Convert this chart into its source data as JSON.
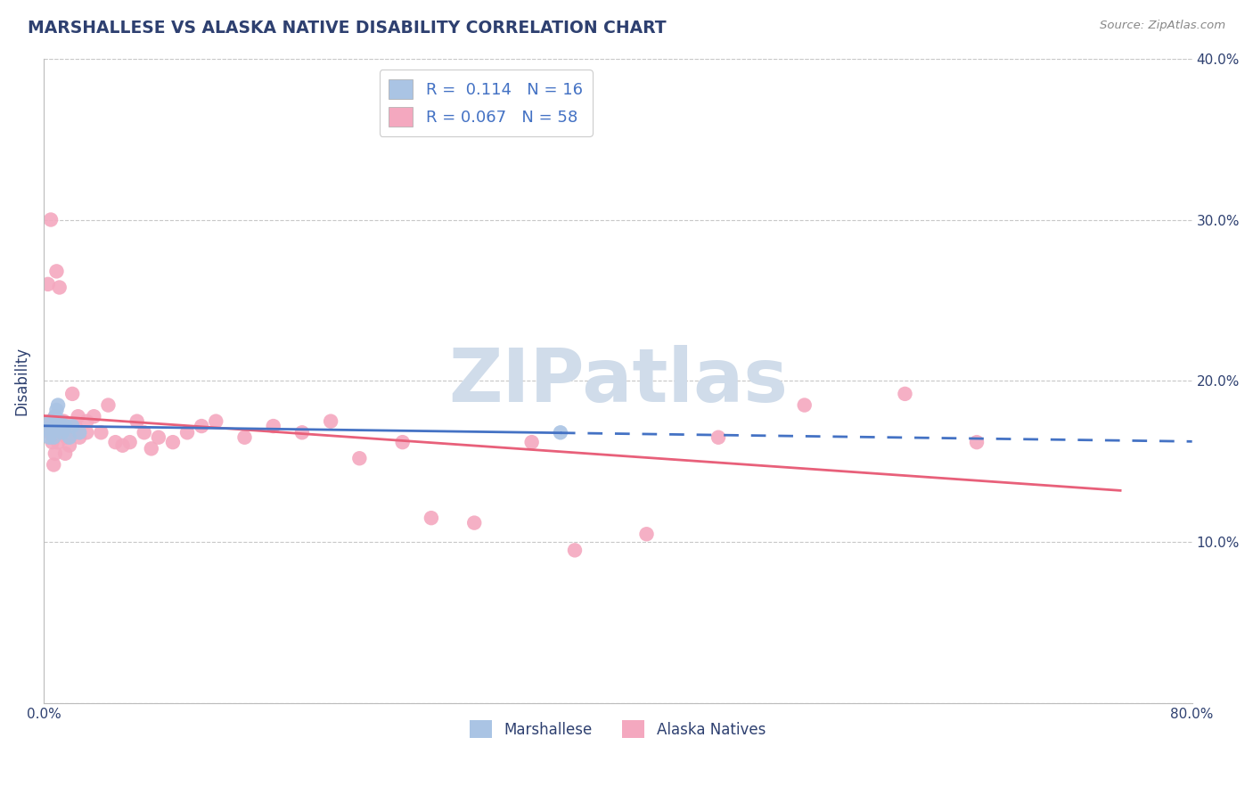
{
  "title": "MARSHALLESE VS ALASKA NATIVE DISABILITY CORRELATION CHART",
  "source": "Source: ZipAtlas.com",
  "ylabel": "Disability",
  "xlim": [
    0.0,
    0.8
  ],
  "ylim": [
    0.0,
    0.4
  ],
  "marshallese_R": 0.114,
  "marshallese_N": 16,
  "alaska_R": 0.067,
  "alaska_N": 58,
  "marshallese_color": "#aac4e4",
  "alaska_color": "#f4a8bf",
  "marshallese_line_color": "#4472c4",
  "alaska_line_color": "#e8607a",
  "background_color": "#ffffff",
  "grid_color": "#c8c8c8",
  "title_color": "#2e4070",
  "axis_label_color": "#2e4070",
  "tick_label_color": "#2e4070",
  "source_color": "#888888",
  "watermark_color": "#d0dcea",
  "legend_label_color": "#4472c4",
  "marshallese_x": [
    0.003,
    0.004,
    0.005,
    0.006,
    0.007,
    0.008,
    0.009,
    0.01,
    0.011,
    0.012,
    0.013,
    0.015,
    0.018,
    0.02,
    0.025,
    0.36
  ],
  "marshallese_y": [
    0.17,
    0.165,
    0.175,
    0.17,
    0.165,
    0.178,
    0.182,
    0.185,
    0.175,
    0.17,
    0.168,
    0.172,
    0.165,
    0.172,
    0.168,
    0.168
  ],
  "alaska_x": [
    0.002,
    0.003,
    0.004,
    0.005,
    0.005,
    0.006,
    0.006,
    0.007,
    0.007,
    0.008,
    0.008,
    0.008,
    0.009,
    0.009,
    0.01,
    0.01,
    0.011,
    0.012,
    0.013,
    0.014,
    0.015,
    0.016,
    0.018,
    0.02,
    0.022,
    0.024,
    0.025,
    0.03,
    0.03,
    0.035,
    0.04,
    0.045,
    0.05,
    0.055,
    0.06,
    0.065,
    0.07,
    0.075,
    0.08,
    0.09,
    0.1,
    0.11,
    0.12,
    0.14,
    0.16,
    0.18,
    0.2,
    0.22,
    0.25,
    0.27,
    0.3,
    0.34,
    0.37,
    0.42,
    0.47,
    0.53,
    0.6,
    0.65
  ],
  "alaska_y": [
    0.17,
    0.26,
    0.168,
    0.3,
    0.175,
    0.162,
    0.175,
    0.148,
    0.165,
    0.155,
    0.172,
    0.178,
    0.168,
    0.268,
    0.172,
    0.162,
    0.258,
    0.175,
    0.168,
    0.175,
    0.155,
    0.165,
    0.16,
    0.192,
    0.172,
    0.178,
    0.165,
    0.168,
    0.175,
    0.178,
    0.168,
    0.185,
    0.162,
    0.16,
    0.162,
    0.175,
    0.168,
    0.158,
    0.165,
    0.162,
    0.168,
    0.172,
    0.175,
    0.165,
    0.172,
    0.168,
    0.175,
    0.152,
    0.162,
    0.115,
    0.112,
    0.162,
    0.095,
    0.105,
    0.165,
    0.185,
    0.192,
    0.162
  ]
}
